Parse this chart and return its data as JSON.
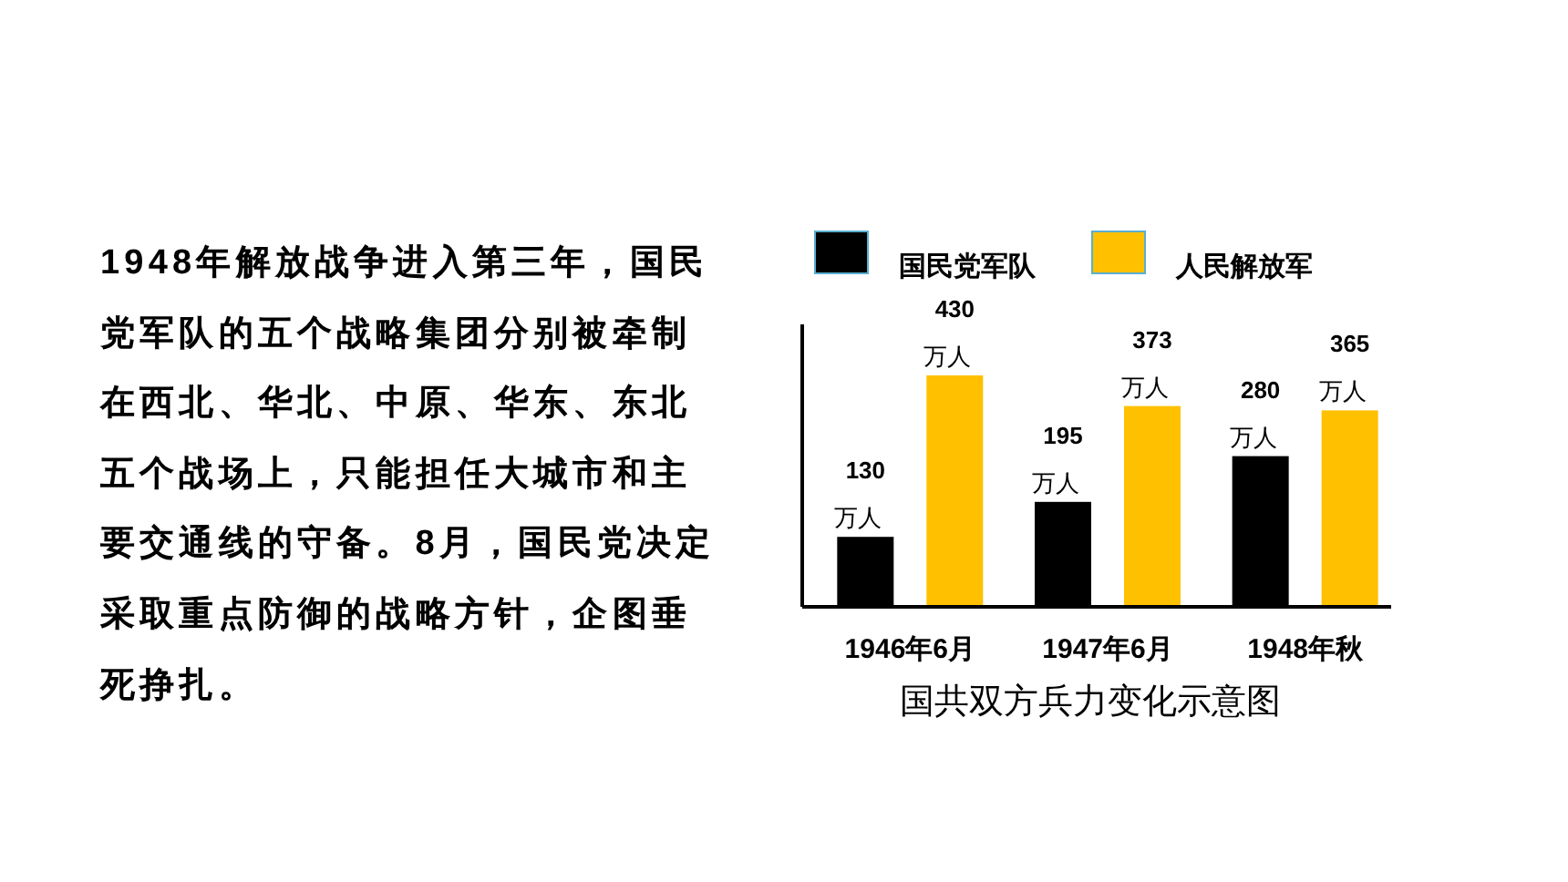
{
  "chart_data": {
    "type": "bar",
    "title": "国共双方兵力变化示意图",
    "categories": [
      "1946年6月",
      "1947年6月",
      "1948年秋"
    ],
    "series": [
      {
        "name": "国民党军队",
        "color": "#000000",
        "values": [
          130,
          195,
          280
        ],
        "value_labels": [
          "130\n万人",
          "195\n万人",
          "280\n万人"
        ]
      },
      {
        "name": "人民解放军",
        "color": "#ffc000",
        "values": [
          430,
          373,
          365
        ],
        "value_labels": [
          "430\n万人",
          "373\n万人",
          "365\n万人"
        ]
      }
    ],
    "relative": false,
    "legend": "top",
    "annotations": [
      "1948年解放战争进入第三年，国民党军队的五个战略集团分别被牵制在西北、华北、中原、华东、东北五个战场上，只能担任大城市和主要交通线的守备。8月，国民党决定采取重点防御的战略方针，企图垂死挣扎。"
    ]
  }
}
